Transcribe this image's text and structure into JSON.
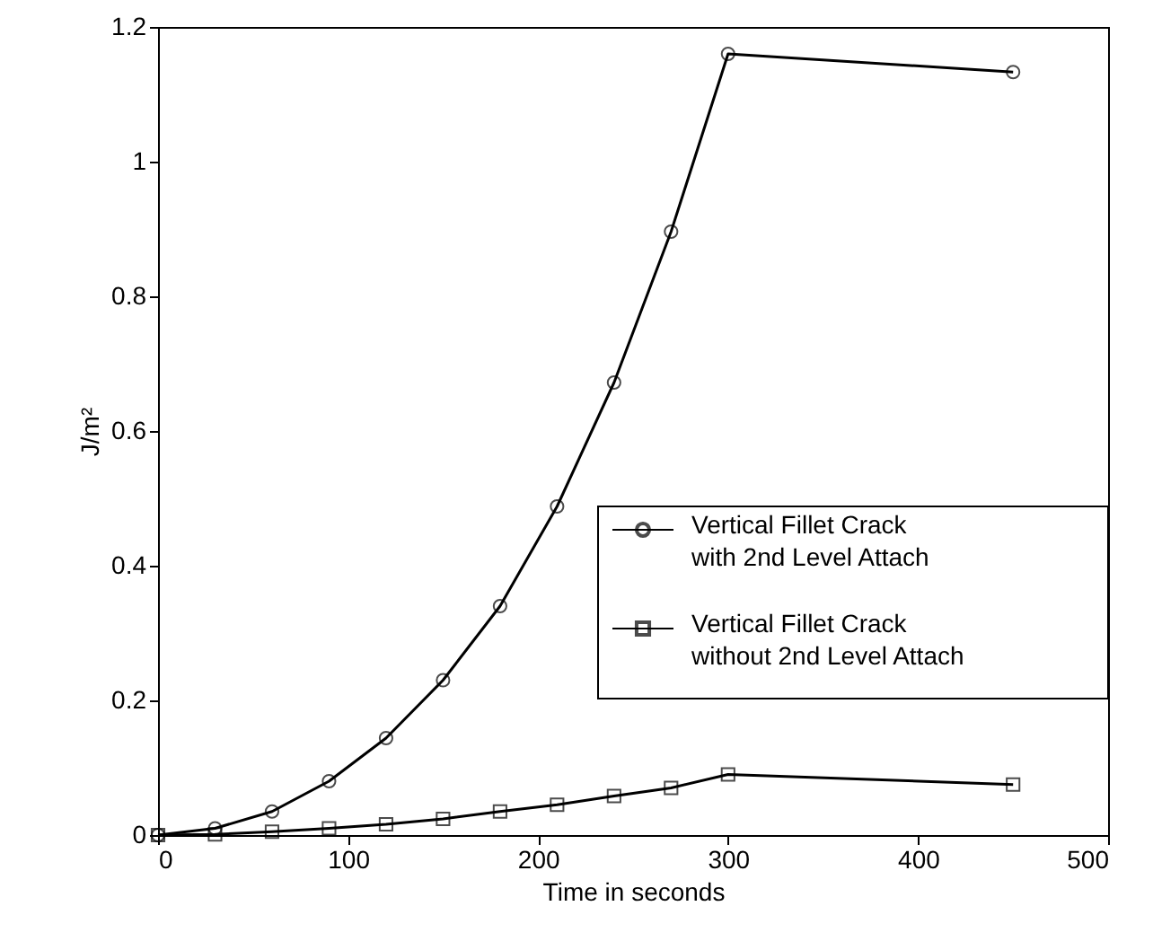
{
  "chart_data": {
    "type": "line",
    "xlabel": "Time in seconds",
    "ylabel": "J/m²",
    "x": [
      0,
      30,
      60,
      90,
      120,
      150,
      180,
      210,
      240,
      270,
      300,
      450
    ],
    "series": [
      {
        "name": "Vertical Fillet Crack\nwith 2nd Level Attach",
        "color": "#000000",
        "marker": "circle",
        "values": [
          0,
          0.01,
          0.035,
          0.08,
          0.144,
          0.23,
          0.34,
          0.488,
          0.672,
          0.896,
          1.16,
          1.133
        ]
      },
      {
        "name": "Vertical Fillet Crack\nwithout 2nd Level Attach",
        "color": "#000000",
        "marker": "square",
        "values": [
          0,
          0.001,
          0.005,
          0.01,
          0.016,
          0.024,
          0.035,
          0.045,
          0.058,
          0.07,
          0.09,
          0.075
        ]
      }
    ],
    "xlim": [
      0,
      500
    ],
    "xticks": [
      0,
      100,
      200,
      300,
      400,
      500
    ],
    "ylim": [
      0,
      1.2
    ],
    "yticks": [
      0,
      0.2,
      0.4,
      0.6,
      0.8,
      1,
      1.2
    ],
    "grid": false,
    "legend": "bottom right",
    "line_style": "solid"
  }
}
